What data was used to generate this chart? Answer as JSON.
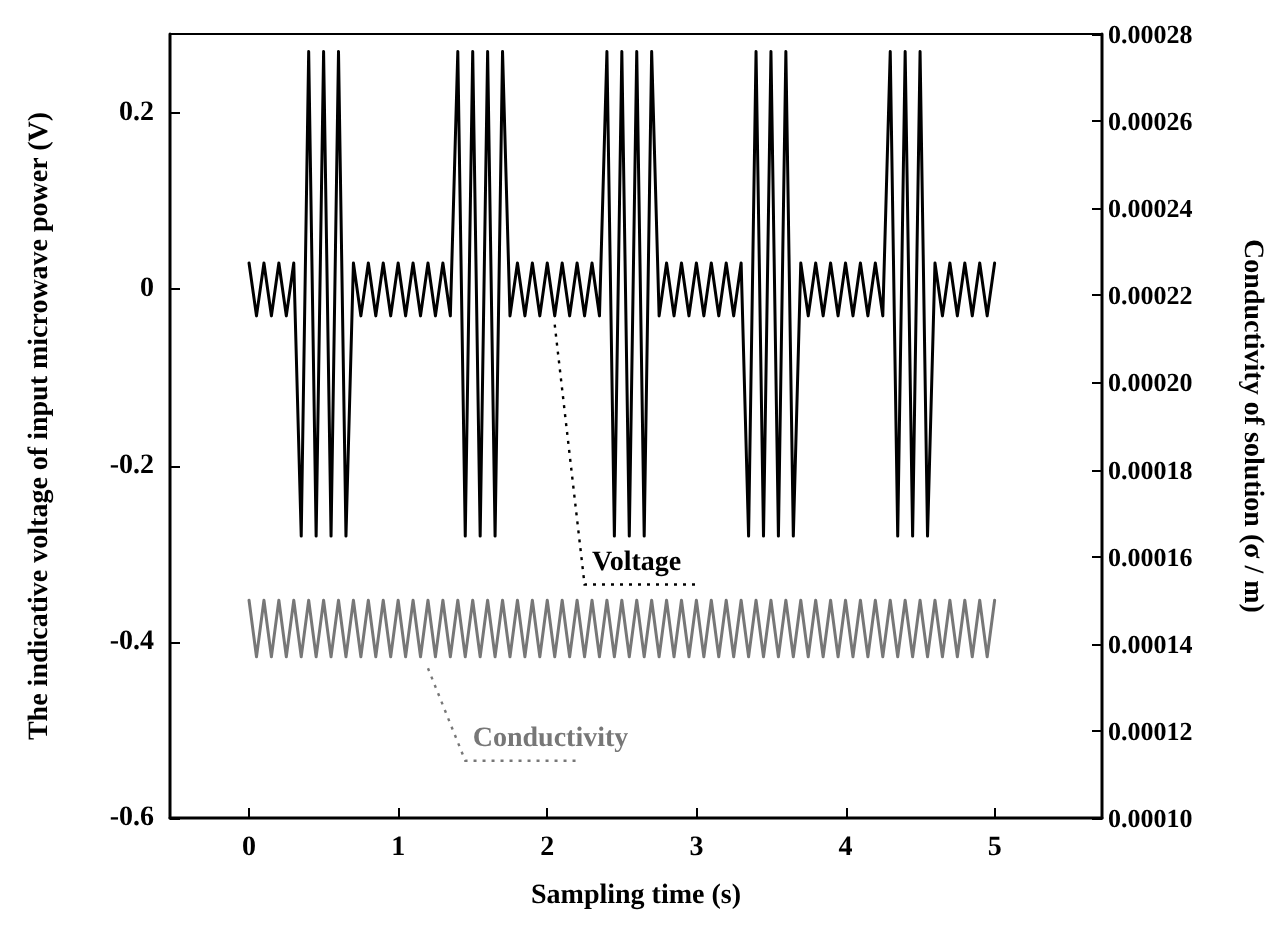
{
  "chart_data": {
    "type": "line",
    "xlabel": "Sampling time (s)",
    "ylabel": "The indicative voltage of input microwave power (V)",
    "y2label": "Conductivity of solution (σ / m)",
    "xlim": [
      -0.53,
      5.72
    ],
    "xticks": [
      0,
      1,
      2,
      3,
      4,
      5
    ],
    "ylim": [
      -0.6,
      0.29
    ],
    "yticks": [
      -0.6,
      -0.4,
      -0.2,
      0,
      0.2
    ],
    "y2lim": [
      0.0001,
      0.00028
    ],
    "y2ticks": [
      {
        "value": 0.0001,
        "label": "0.00010"
      },
      0.00012,
      0.00014,
      0.00016,
      0.00018,
      {
        "value": 0.0002,
        "label": "0.00020"
      },
      0.00022,
      0.00024,
      0.00026,
      0.00028
    ],
    "marker": "none",
    "legend": false,
    "grid": false,
    "x": [
      0,
      0.05,
      0.1,
      0.15,
      0.2,
      0.25,
      0.3,
      0.35,
      0.4,
      0.45,
      0.5,
      0.55,
      0.6,
      0.65,
      0.7,
      0.75,
      0.8,
      0.85,
      0.9,
      0.95,
      1,
      1.05,
      1.1,
      1.15,
      1.2,
      1.25,
      1.3,
      1.35,
      1.4,
      1.45,
      1.5,
      1.55,
      1.6,
      1.65,
      1.7,
      1.75,
      1.8,
      1.85,
      1.9,
      1.95,
      2,
      2.05,
      2.1,
      2.15,
      2.2,
      2.25,
      2.3,
      2.35,
      2.4,
      2.45,
      2.5,
      2.55,
      2.6,
      2.65,
      2.7,
      2.75,
      2.8,
      2.85,
      2.9,
      2.95,
      3,
      3.05,
      3.1,
      3.15,
      3.2,
      3.25,
      3.3,
      3.35,
      3.4,
      3.45,
      3.5,
      3.55,
      3.6,
      3.65,
      3.7,
      3.75,
      3.8,
      3.85,
      3.9,
      3.95,
      4,
      4.05,
      4.1,
      4.15,
      4.2,
      4.25,
      4.3,
      4.35,
      4.4,
      4.45,
      4.5,
      4.55,
      4.6,
      4.65,
      4.7,
      4.75,
      4.8,
      4.85,
      4.9,
      4.95,
      5
    ],
    "series": [
      {
        "name": "Voltage",
        "color": "#000000",
        "values": [
          0.03,
          -0.03,
          0.03,
          -0.03,
          0.03,
          -0.03,
          0.03,
          -0.28,
          0.27,
          -0.28,
          0.27,
          -0.28,
          0.27,
          -0.28,
          0.03,
          -0.03,
          0.03,
          -0.03,
          0.03,
          -0.03,
          0.03,
          -0.03,
          0.03,
          -0.03,
          0.03,
          -0.03,
          0.03,
          -0.03,
          0.27,
          -0.28,
          0.27,
          -0.28,
          0.27,
          -0.28,
          0.27,
          -0.03,
          0.03,
          -0.03,
          0.03,
          -0.03,
          0.03,
          -0.03,
          0.03,
          -0.03,
          0.03,
          -0.03,
          0.03,
          -0.03,
          0.27,
          -0.28,
          0.27,
          -0.28,
          0.27,
          -0.28,
          0.27,
          -0.03,
          0.03,
          -0.03,
          0.03,
          -0.03,
          0.03,
          -0.03,
          0.03,
          -0.03,
          0.03,
          -0.03,
          0.03,
          -0.28,
          0.27,
          -0.28,
          0.27,
          -0.28,
          0.27,
          -0.28,
          0.03,
          -0.03,
          0.03,
          -0.03,
          0.03,
          -0.03,
          0.03,
          -0.03,
          0.03,
          -0.03,
          0.03,
          -0.03,
          0.27,
          -0.28,
          0.27,
          -0.28,
          0.27,
          -0.28,
          0.03,
          -0.03,
          0.03,
          -0.03,
          0.03,
          -0.03,
          0.03,
          -0.03,
          0.03
        ]
      },
      {
        "name": "Conductivity",
        "color": "#777777",
        "axis": "y2",
        "values": [
          0.00015,
          0.000137,
          0.00015,
          0.000137,
          0.00015,
          0.000137,
          0.00015,
          0.000137,
          0.00015,
          0.000137,
          0.00015,
          0.000137,
          0.00015,
          0.000137,
          0.00015,
          0.000137,
          0.00015,
          0.000137,
          0.00015,
          0.000137,
          0.00015,
          0.000137,
          0.00015,
          0.000137,
          0.00015,
          0.000137,
          0.00015,
          0.000137,
          0.00015,
          0.000137,
          0.00015,
          0.000137,
          0.00015,
          0.000137,
          0.00015,
          0.000137,
          0.00015,
          0.000137,
          0.00015,
          0.000137,
          0.00015,
          0.000137,
          0.00015,
          0.000137,
          0.00015,
          0.000137,
          0.00015,
          0.000137,
          0.00015,
          0.000137,
          0.00015,
          0.000137,
          0.00015,
          0.000137,
          0.00015,
          0.000137,
          0.00015,
          0.000137,
          0.00015,
          0.000137,
          0.00015,
          0.000137,
          0.00015,
          0.000137,
          0.00015,
          0.000137,
          0.00015,
          0.000137,
          0.00015,
          0.000137,
          0.00015,
          0.000137,
          0.00015,
          0.000137,
          0.00015,
          0.000137,
          0.00015,
          0.000137,
          0.00015,
          0.000137,
          0.00015,
          0.000137,
          0.00015,
          0.000137,
          0.00015,
          0.000137,
          0.00015,
          0.000137,
          0.00015,
          0.000137,
          0.00015,
          0.000137,
          0.00015,
          0.000137,
          0.00015,
          0.000137,
          0.00015,
          0.000137,
          0.00015,
          0.000137,
          0.00015
        ]
      }
    ]
  }
}
